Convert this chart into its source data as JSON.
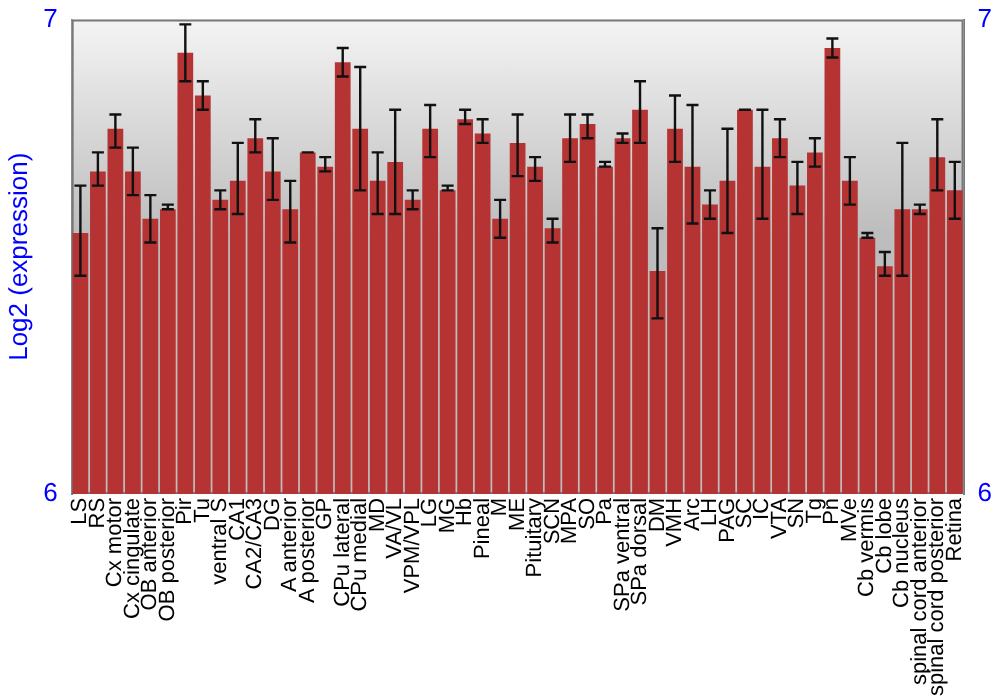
{
  "chart_data": {
    "type": "bar",
    "ylabel": "Log2 (expression)",
    "categories": [
      "LS",
      "RS",
      "Cx motor",
      "Cx cingulate",
      "OB anterior",
      "OB posterior",
      "Pir",
      "Tu",
      "ventral S",
      "CA1",
      "CA2/CA3",
      "DG",
      "A anterior",
      "A posterior",
      "GP",
      "CPu lateral",
      "CPu medial",
      "MD",
      "VA/VL",
      "VPM/VPL",
      "LG",
      "MG",
      "Hb",
      "Pineal",
      "M",
      "ME",
      "Pituitary",
      "SCN",
      "MPA",
      "SO",
      "Pa",
      "SPa ventral",
      "SPa dorsal",
      "DM",
      "VMH",
      "Arc",
      "LH",
      "PAG",
      "SC",
      "IC",
      "VTA",
      "SN",
      "Tg",
      "Pn",
      "MVe",
      "Cb vermis",
      "Cb lobe",
      "Cb nucleus",
      "spinal cord anterior",
      "spinal cord posterior",
      "Retina"
    ],
    "values": [
      6.55,
      6.68,
      6.77,
      6.68,
      6.58,
      6.6,
      6.93,
      6.84,
      6.62,
      6.66,
      6.75,
      6.68,
      6.6,
      6.72,
      6.69,
      6.91,
      6.77,
      6.66,
      6.7,
      6.62,
      6.77,
      6.64,
      6.79,
      6.76,
      6.58,
      6.74,
      6.69,
      6.56,
      6.75,
      6.78,
      6.69,
      6.75,
      6.81,
      6.47,
      6.77,
      6.69,
      6.61,
      6.66,
      6.81,
      6.69,
      6.75,
      6.65,
      6.72,
      6.94,
      6.66,
      6.54,
      6.48,
      6.6,
      6.6,
      6.71,
      6.64
    ],
    "errors": [
      [
        6.46,
        6.65
      ],
      [
        6.65,
        6.72
      ],
      [
        6.73,
        6.8
      ],
      [
        6.63,
        6.73
      ],
      [
        6.53,
        6.63
      ],
      [
        6.6,
        6.61
      ],
      [
        6.87,
        6.99
      ],
      [
        6.81,
        6.87
      ],
      [
        6.6,
        6.64
      ],
      [
        6.59,
        6.74
      ],
      [
        6.72,
        6.79
      ],
      [
        6.62,
        6.75
      ],
      [
        6.53,
        6.66
      ],
      [
        6.72,
        6.72
      ],
      [
        6.68,
        6.71
      ],
      [
        6.88,
        6.94
      ],
      [
        6.64,
        6.9
      ],
      [
        6.59,
        6.72
      ],
      [
        6.59,
        6.81
      ],
      [
        6.6,
        6.64
      ],
      [
        6.71,
        6.82
      ],
      [
        6.64,
        6.65
      ],
      [
        6.78,
        6.81
      ],
      [
        6.74,
        6.79
      ],
      [
        6.54,
        6.62
      ],
      [
        6.67,
        6.8
      ],
      [
        6.66,
        6.71
      ],
      [
        6.53,
        6.58
      ],
      [
        6.7,
        6.8
      ],
      [
        6.75,
        6.8
      ],
      [
        6.69,
        6.7
      ],
      [
        6.74,
        6.76
      ],
      [
        6.74,
        6.87
      ],
      [
        6.37,
        6.56
      ],
      [
        6.7,
        6.84
      ],
      [
        6.57,
        6.82
      ],
      [
        6.58,
        6.64
      ],
      [
        6.55,
        6.77
      ],
      [
        6.81,
        6.81
      ],
      [
        6.58,
        6.81
      ],
      [
        6.71,
        6.79
      ],
      [
        6.59,
        6.7
      ],
      [
        6.69,
        6.75
      ],
      [
        6.92,
        6.96
      ],
      [
        6.61,
        6.71
      ],
      [
        6.54,
        6.55
      ],
      [
        6.46,
        6.51
      ],
      [
        6.46,
        6.74
      ],
      [
        6.59,
        6.61
      ],
      [
        6.64,
        6.79
      ],
      [
        6.58,
        6.7
      ]
    ],
    "color": "#b53333",
    "ylim": [
      6,
      7
    ],
    "yticks": [
      6,
      7
    ],
    "y2lim": [
      6,
      7
    ],
    "y2ticks": [
      6,
      7
    ],
    "grid": false,
    "legend": false
  }
}
